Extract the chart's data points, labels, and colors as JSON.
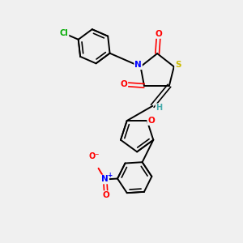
{
  "bg_color": "#f0f0f0",
  "bond_color": "#000000",
  "atom_colors": {
    "O": "#ff0000",
    "N": "#0000ff",
    "S": "#ccbb00",
    "Cl": "#00aa00",
    "H": "#44aaaa",
    "C": "#000000"
  },
  "lw": 1.4,
  "dlw": 1.2,
  "doff": 0.09
}
